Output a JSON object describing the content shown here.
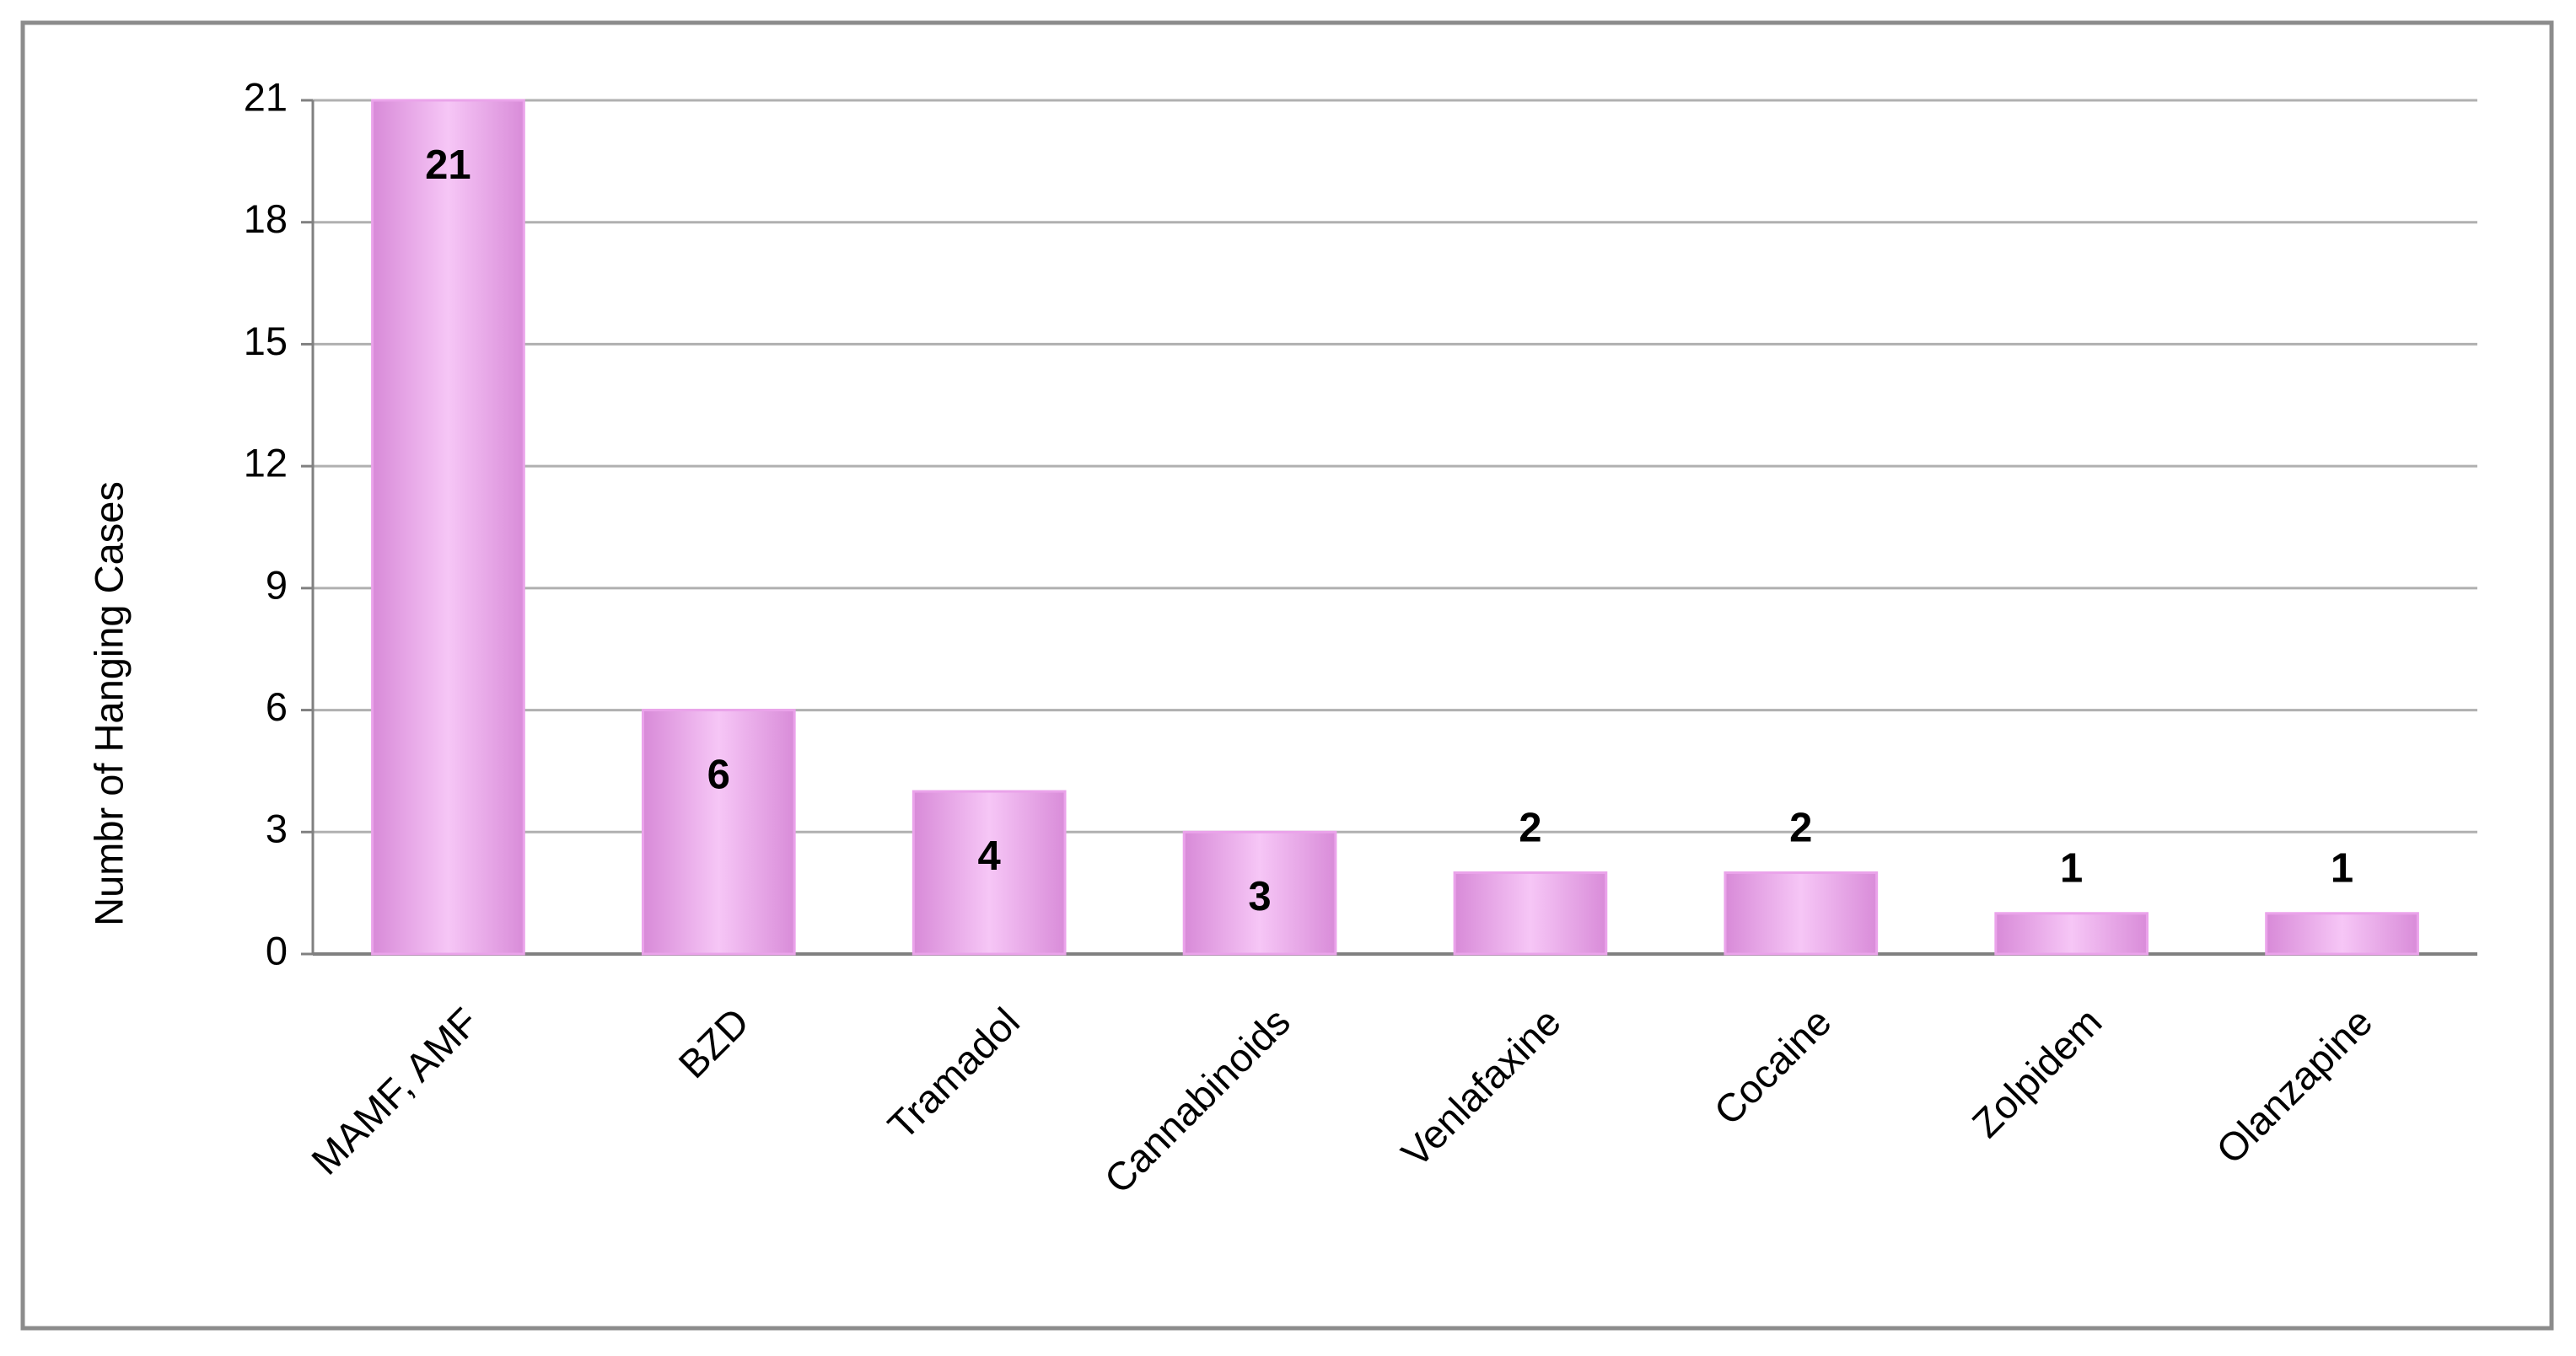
{
  "chart_data": {
    "type": "bar",
    "y_label": "Numbr of Hanging Cases",
    "categories": [
      "MAMF, AMF",
      "BZD",
      "Tramadol",
      "Cannabinoids",
      "Venlafaxine",
      "Cocaine",
      "Zolpidem",
      "Olanzapine"
    ],
    "values": [
      21,
      6,
      4,
      3,
      2,
      2,
      1,
      1
    ],
    "color": "#eaa3ea",
    "ylim": [
      0,
      21
    ],
    "yticks": [
      0,
      3,
      6,
      9,
      12,
      15,
      18,
      21
    ],
    "grid": true
  }
}
